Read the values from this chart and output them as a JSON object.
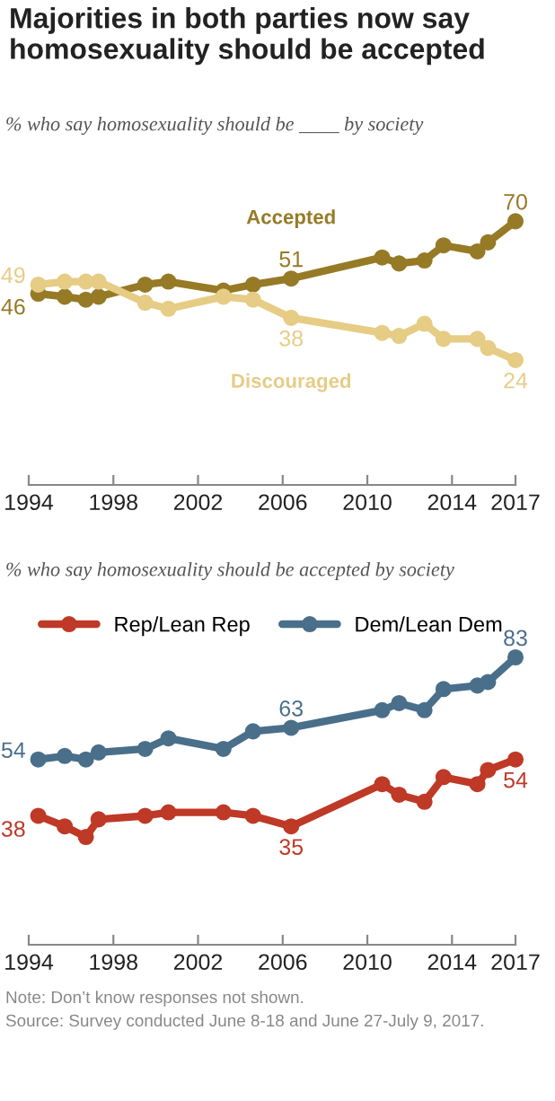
{
  "chart_data": [
    {
      "type": "line",
      "title": "Majorities in both parties now say homosexuality should be accepted",
      "subtitle": "% who say homosexuality should be ____ by society",
      "x": [
        1994.45,
        1995.7,
        1996.7,
        1997.3,
        1999.5,
        2000.6,
        2003.2,
        2004.6,
        2006.4,
        2010.7,
        2011.5,
        2012.7,
        2013.6,
        2015.2,
        2015.7,
        2017
      ],
      "series": [
        {
          "name": "Accepted",
          "color": "#967a26",
          "values": [
            46,
            45,
            44,
            45,
            49,
            50,
            47,
            49,
            51,
            58,
            56,
            57,
            62,
            60,
            63,
            70
          ],
          "value_labels": [
            "46",
            null,
            null,
            null,
            null,
            null,
            null,
            null,
            "51",
            null,
            null,
            null,
            null,
            null,
            null,
            "70"
          ]
        },
        {
          "name": "Discouraged",
          "color": "#e6cc85",
          "values": [
            49,
            50,
            50,
            50,
            43,
            41,
            45,
            44,
            38,
            33,
            32,
            36,
            31,
            31,
            28,
            24
          ],
          "value_labels": [
            "49",
            null,
            null,
            null,
            null,
            null,
            null,
            null,
            "38",
            null,
            null,
            null,
            null,
            null,
            null,
            "24"
          ]
        }
      ],
      "xlim": [
        1994,
        2017
      ],
      "xticks": [
        1994,
        1998,
        2002,
        2006,
        2010,
        2014,
        2017
      ],
      "tick_labels": "x",
      "marker": "circle",
      "line_style": "solid",
      "legend": false,
      "grid": false
    },
    {
      "type": "line",
      "subtitle": "% who say homosexuality should be accepted by society",
      "x": [
        1994.45,
        1995.7,
        1996.7,
        1997.3,
        1999.5,
        2000.6,
        2003.2,
        2004.6,
        2006.4,
        2010.7,
        2011.5,
        2012.7,
        2013.6,
        2015.2,
        2015.7,
        2017
      ],
      "series": [
        {
          "name": "Rep/Lean Rep",
          "color": "#bf3927",
          "values": [
            38,
            35,
            32,
            37,
            38,
            39,
            39,
            38,
            35,
            47,
            44,
            42,
            49,
            47,
            51,
            54
          ],
          "value_labels": [
            "38",
            null,
            null,
            null,
            null,
            null,
            null,
            null,
            "35",
            null,
            null,
            null,
            null,
            null,
            null,
            "54"
          ]
        },
        {
          "name": "Dem/Lean Dem",
          "color": "#4a6f8a",
          "values": [
            54,
            55,
            54,
            56,
            57,
            60,
            57,
            62,
            63,
            68,
            70,
            68,
            74,
            75,
            76,
            83
          ],
          "value_labels": [
            "54",
            null,
            null,
            null,
            null,
            null,
            null,
            null,
            "63",
            null,
            null,
            null,
            null,
            null,
            null,
            "83"
          ]
        }
      ],
      "xlim": [
        1994,
        2017
      ],
      "xticks": [
        1994,
        1998,
        2002,
        2006,
        2010,
        2014,
        2017
      ],
      "tick_labels": "x",
      "marker": "circle",
      "line_style": "solid",
      "legend": "top",
      "grid": false,
      "annotations": [
        "Note: Don’t know responses not shown.",
        "Source: Survey conducted June 8-18 and June 27-July 9, 2017."
      ]
    }
  ]
}
